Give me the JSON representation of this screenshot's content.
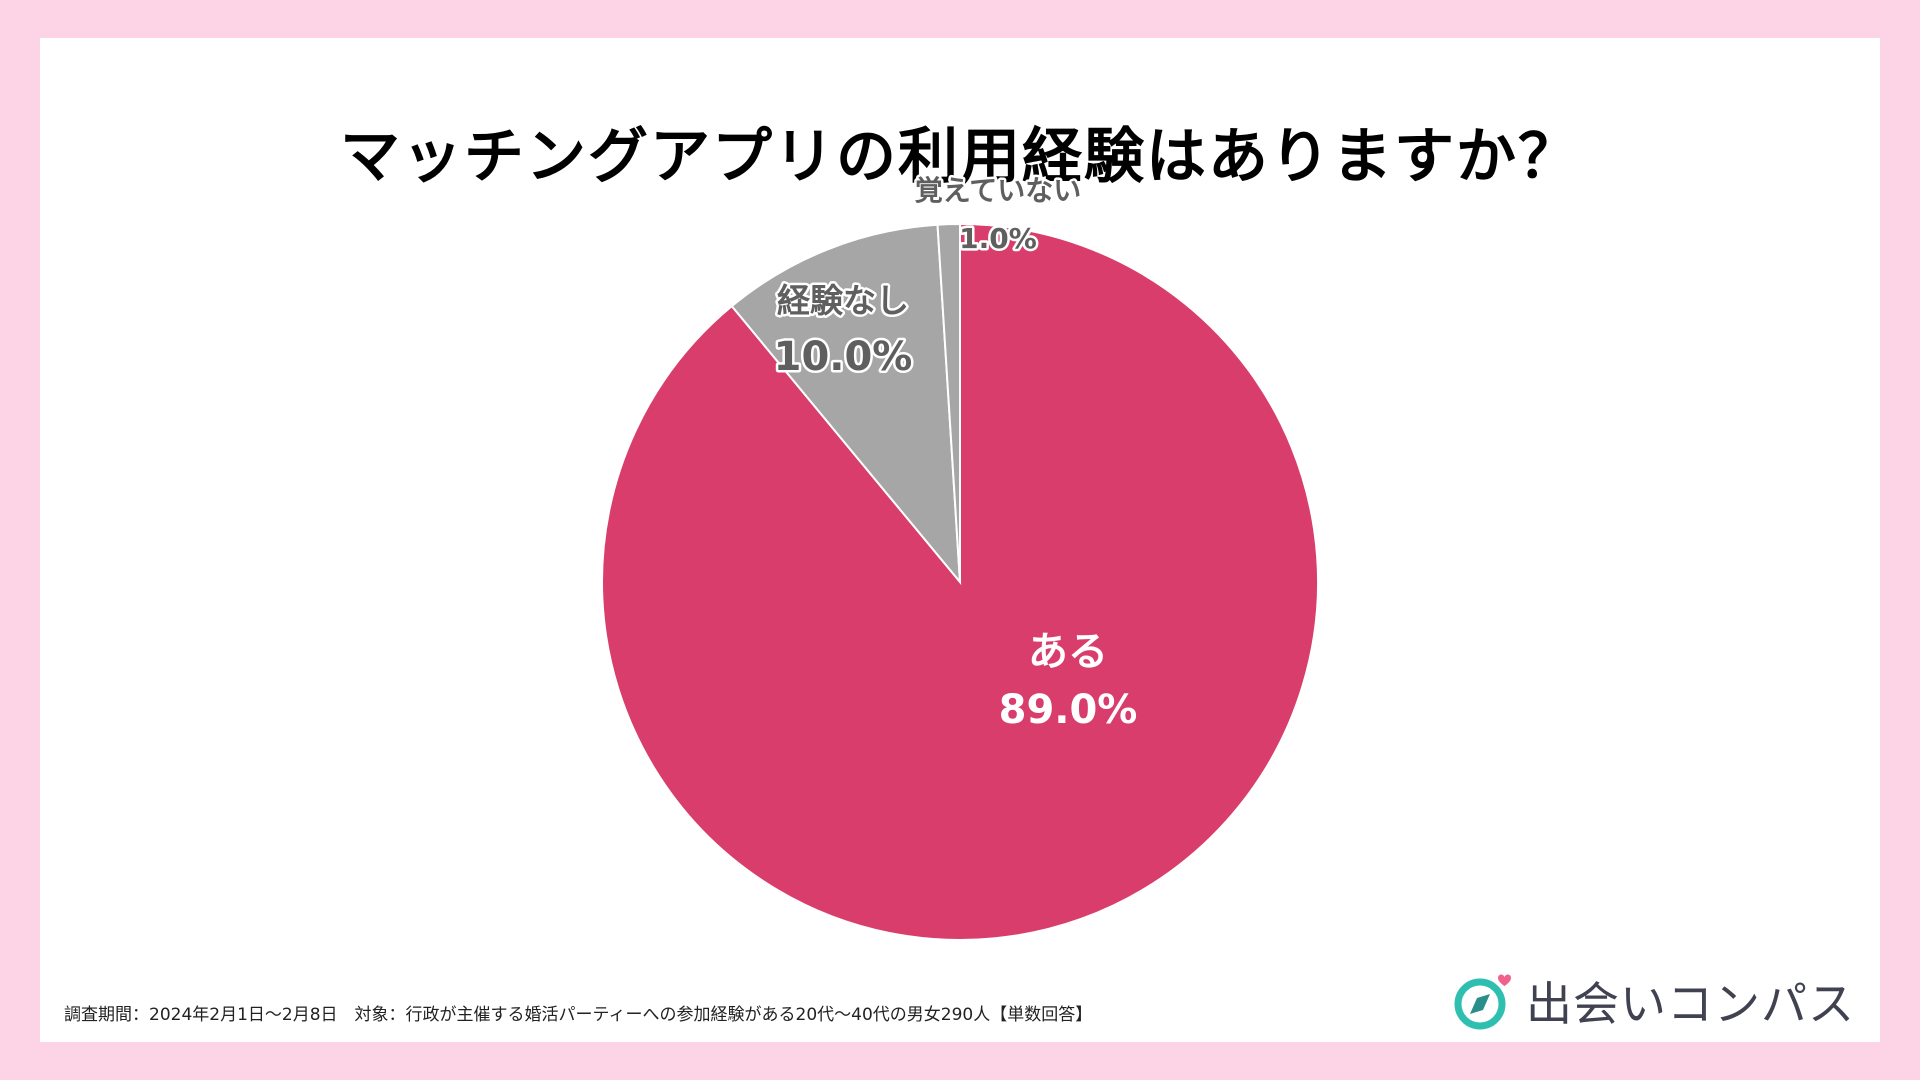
{
  "title": "マッチングアプリの利用経験はありますか？",
  "chart_data": {
    "type": "pie",
    "title": "マッチングアプリの利用経験はありますか？",
    "slices": [
      {
        "label": "ある",
        "value": 89.0,
        "display": "89.0%",
        "color": "#d83d6c"
      },
      {
        "label": "経験なし",
        "value": 10.0,
        "display": "10.0%",
        "color": "#a6a6a6"
      },
      {
        "label": "覚えていない",
        "value": 1.0,
        "display": "1.0%",
        "color": "#a6a6a6"
      }
    ],
    "start": "12 o'clock, clockwise"
  },
  "footnote": "調査期間：2024年2月1日〜2月8日　対象：行政が主催する婚活パーティーへの参加経験がある20代〜40代の男女290人【単数回答】",
  "logo": {
    "text": "出会いコンパス",
    "icon": "compass-heart-icon",
    "accent": "#2fbfb0",
    "heart_color": "#f0628e"
  }
}
